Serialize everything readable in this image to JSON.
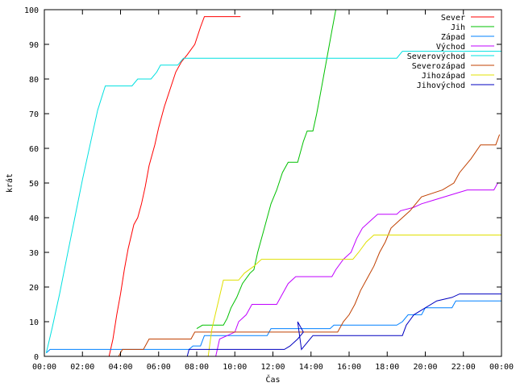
{
  "chart_data": {
    "type": "line",
    "xlabel": "Čas",
    "ylabel": "krát",
    "xlim": [
      0,
      24
    ],
    "ylim": [
      0,
      100
    ],
    "x_ticks": [
      {
        "value": 0,
        "label": "00:00"
      },
      {
        "value": 2,
        "label": "02:00"
      },
      {
        "value": 4,
        "label": "04:00"
      },
      {
        "value": 6,
        "label": "06:00"
      },
      {
        "value": 8,
        "label": "08:00"
      },
      {
        "value": 10,
        "label": "10:00"
      },
      {
        "value": 12,
        "label": "12:00"
      },
      {
        "value": 14,
        "label": "14:00"
      },
      {
        "value": 16,
        "label": "16:00"
      },
      {
        "value": 18,
        "label": "18:00"
      },
      {
        "value": 20,
        "label": "20:00"
      },
      {
        "value": 22,
        "label": "22:00"
      },
      {
        "value": 24,
        "label": "00:00"
      }
    ],
    "y_ticks": [
      0,
      10,
      20,
      30,
      40,
      50,
      60,
      70,
      80,
      90,
      100
    ],
    "grid": false,
    "legend_position": "top-right",
    "series": [
      {
        "name": "Sever",
        "color": "#ff0000",
        "points": [
          [
            3.4,
            0
          ],
          [
            3.6,
            5
          ],
          [
            3.8,
            12
          ],
          [
            4.0,
            18
          ],
          [
            4.2,
            25
          ],
          [
            4.4,
            31
          ],
          [
            4.7,
            38
          ],
          [
            4.9,
            40
          ],
          [
            5.1,
            44
          ],
          [
            5.3,
            49
          ],
          [
            5.5,
            55
          ],
          [
            5.8,
            61
          ],
          [
            6.0,
            66
          ],
          [
            6.3,
            72
          ],
          [
            6.6,
            77
          ],
          [
            6.9,
            82
          ],
          [
            7.2,
            85
          ],
          [
            7.5,
            87
          ],
          [
            7.9,
            90
          ],
          [
            8.2,
            95
          ],
          [
            8.4,
            98
          ],
          [
            10.3,
            98
          ]
        ]
      },
      {
        "name": "Jih",
        "color": "#00c000",
        "points": [
          [
            8.0,
            8
          ],
          [
            8.3,
            9
          ],
          [
            9.4,
            9
          ],
          [
            9.6,
            11
          ],
          [
            9.8,
            14
          ],
          [
            10.1,
            17
          ],
          [
            10.4,
            21
          ],
          [
            10.8,
            24
          ],
          [
            11.0,
            25
          ],
          [
            11.2,
            30
          ],
          [
            11.5,
            36
          ],
          [
            11.7,
            40
          ],
          [
            11.9,
            44
          ],
          [
            12.2,
            48
          ],
          [
            12.5,
            53
          ],
          [
            12.8,
            56
          ],
          [
            13.3,
            56
          ],
          [
            13.6,
            62
          ],
          [
            13.8,
            65
          ],
          [
            14.1,
            65
          ],
          [
            14.3,
            70
          ],
          [
            14.5,
            76
          ],
          [
            14.7,
            82
          ],
          [
            14.9,
            88
          ],
          [
            15.1,
            94
          ],
          [
            15.3,
            100
          ]
        ]
      },
      {
        "name": "Západ",
        "color": "#0080ff",
        "points": [
          [
            0.1,
            1
          ],
          [
            0.3,
            2
          ],
          [
            7.6,
            2
          ],
          [
            7.8,
            3
          ],
          [
            8.2,
            3
          ],
          [
            8.4,
            6
          ],
          [
            11.7,
            6
          ],
          [
            11.9,
            8
          ],
          [
            15.0,
            8
          ],
          [
            15.2,
            9
          ],
          [
            18.5,
            9
          ],
          [
            18.8,
            10
          ],
          [
            19.1,
            12
          ],
          [
            19.8,
            12
          ],
          [
            20.0,
            14
          ],
          [
            21.4,
            14
          ],
          [
            21.6,
            16
          ],
          [
            24.0,
            16
          ]
        ]
      },
      {
        "name": "Východ",
        "color": "#c000ff",
        "points": [
          [
            9.0,
            0
          ],
          [
            9.2,
            5
          ],
          [
            10.0,
            7
          ],
          [
            10.2,
            10
          ],
          [
            10.6,
            12
          ],
          [
            10.9,
            15
          ],
          [
            12.2,
            15
          ],
          [
            12.5,
            18
          ],
          [
            12.8,
            21
          ],
          [
            13.2,
            23
          ],
          [
            15.1,
            23
          ],
          [
            15.3,
            25
          ],
          [
            15.7,
            28
          ],
          [
            16.1,
            30
          ],
          [
            16.4,
            34
          ],
          [
            16.7,
            37
          ],
          [
            17.1,
            39
          ],
          [
            17.5,
            41
          ],
          [
            18.5,
            41
          ],
          [
            18.7,
            42
          ],
          [
            19.4,
            43
          ],
          [
            19.8,
            44
          ],
          [
            20.4,
            45
          ],
          [
            21.6,
            47
          ],
          [
            22.2,
            48
          ],
          [
            23.6,
            48
          ],
          [
            23.8,
            50
          ],
          [
            24.0,
            50
          ]
        ]
      },
      {
        "name": "Severovýchod",
        "color": "#00e0e0",
        "points": [
          [
            0.1,
            1
          ],
          [
            0.4,
            8
          ],
          [
            0.8,
            18
          ],
          [
            1.2,
            29
          ],
          [
            1.6,
            40
          ],
          [
            2.0,
            51
          ],
          [
            2.4,
            61
          ],
          [
            2.8,
            71
          ],
          [
            3.2,
            78
          ],
          [
            4.6,
            78
          ],
          [
            4.9,
            80
          ],
          [
            5.6,
            80
          ],
          [
            5.9,
            82
          ],
          [
            6.1,
            84
          ],
          [
            7.0,
            84
          ],
          [
            7.3,
            86
          ],
          [
            18.5,
            86
          ],
          [
            18.8,
            88
          ],
          [
            24.0,
            88
          ]
        ]
      },
      {
        "name": "Severozápad",
        "color": "#c04000",
        "points": [
          [
            3.9,
            0
          ],
          [
            4.1,
            2
          ],
          [
            5.2,
            2
          ],
          [
            5.5,
            5
          ],
          [
            7.7,
            5
          ],
          [
            7.9,
            7
          ],
          [
            15.4,
            7
          ],
          [
            15.7,
            10
          ],
          [
            16.0,
            12
          ],
          [
            16.3,
            15
          ],
          [
            16.6,
            19
          ],
          [
            17.0,
            23
          ],
          [
            17.3,
            26
          ],
          [
            17.6,
            30
          ],
          [
            17.9,
            33
          ],
          [
            18.2,
            37
          ],
          [
            18.6,
            39
          ],
          [
            19.2,
            42
          ],
          [
            19.8,
            46
          ],
          [
            20.9,
            48
          ],
          [
            21.5,
            50
          ],
          [
            21.8,
            53
          ],
          [
            22.4,
            57
          ],
          [
            22.9,
            61
          ],
          [
            23.7,
            61
          ],
          [
            23.9,
            64
          ]
        ]
      },
      {
        "name": "Jihozápad",
        "color": "#e0e000",
        "points": [
          [
            8.6,
            0
          ],
          [
            8.8,
            8
          ],
          [
            9.1,
            15
          ],
          [
            9.4,
            22
          ],
          [
            10.2,
            22
          ],
          [
            10.5,
            24
          ],
          [
            11.0,
            26
          ],
          [
            11.4,
            28
          ],
          [
            16.2,
            28
          ],
          [
            16.5,
            30
          ],
          [
            16.9,
            33
          ],
          [
            17.3,
            35
          ],
          [
            24.0,
            35
          ]
        ]
      },
      {
        "name": "Jihovýchod",
        "color": "#0000c0",
        "points": [
          [
            7.5,
            0
          ],
          [
            7.6,
            2
          ],
          [
            12.6,
            2
          ],
          [
            12.9,
            3
          ],
          [
            13.3,
            5
          ],
          [
            13.6,
            7
          ],
          [
            13.3,
            10
          ],
          [
            13.5,
            2
          ],
          [
            13.8,
            4
          ],
          [
            14.1,
            6
          ],
          [
            18.8,
            6
          ],
          [
            19.0,
            9
          ],
          [
            19.4,
            12
          ],
          [
            20.0,
            14
          ],
          [
            20.6,
            16
          ],
          [
            21.4,
            17
          ],
          [
            21.8,
            18
          ],
          [
            24.0,
            18
          ]
        ]
      }
    ]
  }
}
